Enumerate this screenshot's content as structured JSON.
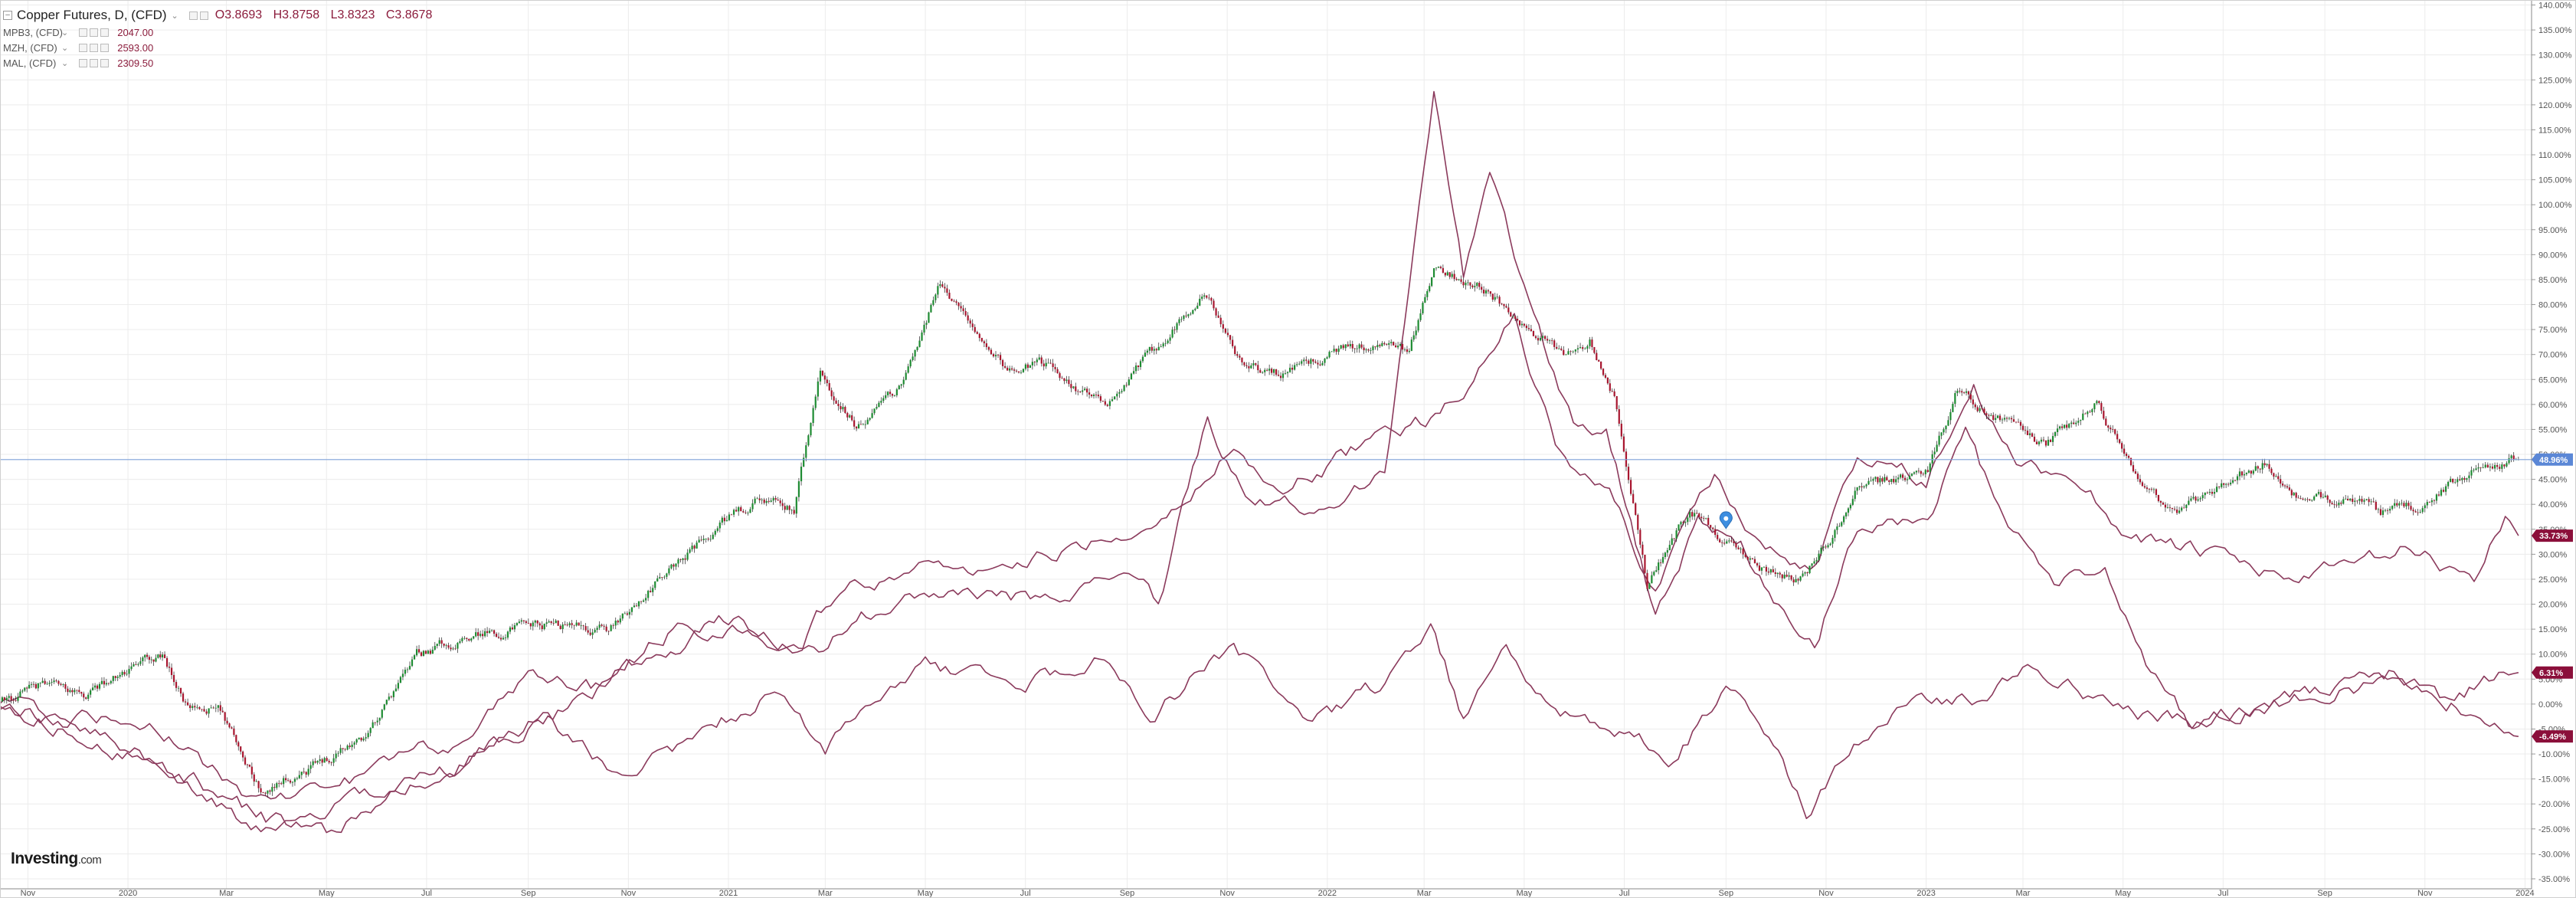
{
  "legend": {
    "main": {
      "symbol": "Copper Futures, D, (CFD)",
      "open": "O3.8693",
      "high": "H3.8758",
      "low": "L3.8323",
      "close": "C3.8678"
    },
    "subs": [
      {
        "symbol": "MPB3, (CFD)",
        "value": "2047.00"
      },
      {
        "symbol": "MZH, (CFD)",
        "value": "2593.00"
      },
      {
        "symbol": "MAL, (CFD)",
        "value": "2309.50"
      }
    ]
  },
  "logo": {
    "brand": "Investing",
    "suffix": ".com"
  },
  "colors": {
    "up": "#1e8b32",
    "down": "#a8162f",
    "compare": "#8b3a5c",
    "hline": "#7ea1d8",
    "grid": "#ececec",
    "badge_main": "#5b87d6",
    "badge_compare": "#8b0f3a"
  },
  "chart_data": {
    "type": "line",
    "y_unit": "%",
    "ylim": [
      -37,
      141
    ],
    "y_ticks": [
      "140.00%",
      "135.00%",
      "130.00%",
      "125.00%",
      "120.00%",
      "115.00%",
      "110.00%",
      "105.00%",
      "100.00%",
      "95.00%",
      "90.00%",
      "85.00%",
      "80.00%",
      "75.00%",
      "70.00%",
      "65.00%",
      "60.00%",
      "55.00%",
      "50.00%",
      "45.00%",
      "40.00%",
      "35.00%",
      "30.00%",
      "25.00%",
      "20.00%",
      "15.00%",
      "10.00%",
      "5.00%",
      "0.00%",
      "-5.00%",
      "-10.00%",
      "-15.00%",
      "-20.00%",
      "-25.00%",
      "-30.00%",
      "-35.00%"
    ],
    "x_ticks": [
      "Nov",
      "2020",
      "Mar",
      "May",
      "Jul",
      "Sep",
      "Nov",
      "2021",
      "Mar",
      "May",
      "Jul",
      "Sep",
      "Nov",
      "2022",
      "Mar",
      "May",
      "Jul",
      "Sep",
      "Nov",
      "2023",
      "Mar",
      "May",
      "Jul",
      "Sep",
      "Nov",
      "2024"
    ],
    "x_range": [
      "2019-10-15",
      "2024-01-05"
    ],
    "grid": true,
    "current_line": 48.96,
    "series": [
      {
        "name": "Copper Futures, D, (CFD)",
        "style": "candlestick",
        "points": [
          [
            "2019-10-15",
            0
          ],
          [
            "2019-11-10",
            4
          ],
          [
            "2019-12-05",
            2
          ],
          [
            "2020-01-10",
            8
          ],
          [
            "2020-01-22",
            10
          ],
          [
            "2020-02-05",
            0
          ],
          [
            "2020-02-25",
            -1
          ],
          [
            "2020-03-22",
            -17
          ],
          [
            "2020-04-20",
            -13
          ],
          [
            "2020-05-25",
            -6
          ],
          [
            "2020-06-25",
            10
          ],
          [
            "2020-07-31",
            14
          ],
          [
            "2020-09-15",
            16
          ],
          [
            "2020-10-20",
            15
          ],
          [
            "2020-11-30",
            28
          ],
          [
            "2020-12-31",
            37
          ],
          [
            "2021-01-20",
            41
          ],
          [
            "2021-02-10",
            39
          ],
          [
            "2021-02-26",
            66
          ],
          [
            "2021-03-20",
            56
          ],
          [
            "2021-04-15",
            63
          ],
          [
            "2021-05-10",
            84
          ],
          [
            "2021-06-20",
            67
          ],
          [
            "2021-07-15",
            68
          ],
          [
            "2021-08-20",
            59
          ],
          [
            "2021-09-05",
            66
          ],
          [
            "2021-10-18",
            83
          ],
          [
            "2021-11-10",
            68
          ],
          [
            "2021-12-05",
            66
          ],
          [
            "2022-01-15",
            72
          ],
          [
            "2022-02-20",
            71
          ],
          [
            "2022-03-07",
            87
          ],
          [
            "2022-04-05",
            84
          ],
          [
            "2022-05-01",
            75
          ],
          [
            "2022-05-25",
            70
          ],
          [
            "2022-06-10",
            73
          ],
          [
            "2022-06-25",
            62
          ],
          [
            "2022-07-15",
            24
          ],
          [
            "2022-08-10",
            39
          ],
          [
            "2022-08-31",
            33
          ],
          [
            "2022-09-20",
            27
          ],
          [
            "2022-10-15",
            25
          ],
          [
            "2022-11-05",
            33
          ],
          [
            "2022-11-20",
            43
          ],
          [
            "2023-01-02",
            47
          ],
          [
            "2023-01-20",
            63
          ],
          [
            "2023-02-15",
            57
          ],
          [
            "2023-03-15",
            52
          ],
          [
            "2023-04-15",
            60
          ],
          [
            "2023-05-10",
            46
          ],
          [
            "2023-05-31",
            38
          ],
          [
            "2023-06-30",
            44
          ],
          [
            "2023-07-25",
            48
          ],
          [
            "2023-08-20",
            40
          ],
          [
            "2023-09-15",
            42
          ],
          [
            "2023-10-05",
            38
          ],
          [
            "2023-11-01",
            40
          ],
          [
            "2023-12-05",
            48
          ],
          [
            "2023-12-28",
            49
          ]
        ]
      },
      {
        "name": "MPB3, (CFD)",
        "style": "line",
        "points": [
          [
            "2019-10-15",
            0
          ],
          [
            "2019-12-01",
            -6
          ],
          [
            "2020-01-25",
            -13
          ],
          [
            "2020-03-22",
            -26
          ],
          [
            "2020-05-15",
            -20
          ],
          [
            "2020-07-15",
            -13
          ],
          [
            "2020-09-10",
            -2
          ],
          [
            "2020-10-25",
            -15
          ],
          [
            "2020-12-10",
            -7
          ],
          [
            "2021-02-01",
            3
          ],
          [
            "2021-03-01",
            -9
          ],
          [
            "2021-05-01",
            8
          ],
          [
            "2021-06-25",
            3
          ],
          [
            "2021-08-15",
            9
          ],
          [
            "2021-09-15",
            -2
          ],
          [
            "2021-11-05",
            12
          ],
          [
            "2021-12-20",
            -5
          ],
          [
            "2022-01-30",
            3
          ],
          [
            "2022-03-05",
            14
          ],
          [
            "2022-03-25",
            -3
          ],
          [
            "2022-04-20",
            12
          ],
          [
            "2022-05-20",
            -1
          ],
          [
            "2022-07-01",
            -5
          ],
          [
            "2022-07-31",
            -12
          ],
          [
            "2022-09-01",
            3
          ],
          [
            "2022-09-30",
            -8
          ],
          [
            "2022-10-20",
            -22
          ],
          [
            "2022-11-15",
            -10
          ],
          [
            "2022-12-20",
            2
          ],
          [
            "2023-02-01",
            1
          ],
          [
            "2023-03-10",
            8
          ],
          [
            "2023-05-01",
            -2
          ],
          [
            "2023-06-15",
            -4
          ],
          [
            "2023-08-01",
            0
          ],
          [
            "2023-09-01",
            2
          ],
          [
            "2023-10-15",
            5
          ],
          [
            "2023-11-20",
            0
          ],
          [
            "2023-12-28",
            -6.49
          ]
        ]
      },
      {
        "name": "MZH, (CFD)",
        "style": "line",
        "points": [
          [
            "2019-10-15",
            0
          ],
          [
            "2019-12-15",
            -6
          ],
          [
            "2020-02-10",
            -15
          ],
          [
            "2020-03-25",
            -23
          ],
          [
            "2020-05-01",
            -26
          ],
          [
            "2020-06-15",
            -18
          ],
          [
            "2020-09-01",
            -5
          ],
          [
            "2020-11-15",
            10
          ],
          [
            "2021-01-01",
            17
          ],
          [
            "2021-02-25",
            10
          ],
          [
            "2021-03-20",
            18
          ],
          [
            "2021-05-15",
            22
          ],
          [
            "2021-07-01",
            21
          ],
          [
            "2021-09-05",
            26
          ],
          [
            "2021-09-20",
            20
          ],
          [
            "2021-10-20",
            58
          ],
          [
            "2021-11-15",
            40
          ],
          [
            "2021-12-30",
            40
          ],
          [
            "2022-02-05",
            47
          ],
          [
            "2022-03-07",
            122
          ],
          [
            "2022-03-25",
            85
          ],
          [
            "2022-04-10",
            107
          ],
          [
            "2022-05-10",
            75
          ],
          [
            "2022-05-31",
            56
          ],
          [
            "2022-06-20",
            55
          ],
          [
            "2022-07-20",
            18
          ],
          [
            "2022-08-15",
            36
          ],
          [
            "2022-09-10",
            32
          ],
          [
            "2022-09-30",
            21
          ],
          [
            "2022-10-25",
            12
          ],
          [
            "2022-11-20",
            35
          ],
          [
            "2023-01-05",
            38
          ],
          [
            "2023-01-25",
            55
          ],
          [
            "2023-02-20",
            35
          ],
          [
            "2023-03-20",
            24
          ],
          [
            "2023-04-20",
            26
          ],
          [
            "2023-05-15",
            9
          ],
          [
            "2023-06-10",
            -3
          ],
          [
            "2023-07-20",
            0
          ],
          [
            "2023-09-01",
            3
          ],
          [
            "2023-10-10",
            6
          ],
          [
            "2023-11-10",
            1
          ],
          [
            "2023-12-28",
            6.31
          ]
        ]
      },
      {
        "name": "MAL, (CFD)",
        "style": "line",
        "points": [
          [
            "2019-10-15",
            0
          ],
          [
            "2019-12-01",
            -3
          ],
          [
            "2020-01-20",
            -5
          ],
          [
            "2020-03-22",
            -20
          ],
          [
            "2020-05-15",
            -15
          ],
          [
            "2020-07-20",
            -7
          ],
          [
            "2020-09-01",
            5
          ],
          [
            "2020-10-15",
            3
          ],
          [
            "2020-12-01",
            16
          ],
          [
            "2021-02-15",
            12
          ],
          [
            "2021-03-10",
            24
          ],
          [
            "2021-05-15",
            28
          ],
          [
            "2021-06-20",
            26
          ],
          [
            "2021-08-10",
            33
          ],
          [
            "2021-09-25",
            38
          ],
          [
            "2021-11-05",
            51
          ],
          [
            "2021-12-05",
            43
          ],
          [
            "2022-01-30",
            53
          ],
          [
            "2022-03-05",
            57
          ],
          [
            "2022-03-25",
            62
          ],
          [
            "2022-04-25",
            78
          ],
          [
            "2022-05-20",
            52
          ],
          [
            "2022-06-25",
            40
          ],
          [
            "2022-07-20",
            23
          ],
          [
            "2022-08-25",
            46
          ],
          [
            "2022-09-25",
            30
          ],
          [
            "2022-10-25",
            27
          ],
          [
            "2022-11-20",
            49
          ],
          [
            "2023-01-01",
            45
          ],
          [
            "2023-01-30",
            63
          ],
          [
            "2023-02-25",
            48
          ],
          [
            "2023-04-05",
            45
          ],
          [
            "2023-04-30",
            35
          ],
          [
            "2023-06-20",
            30
          ],
          [
            "2023-08-10",
            25
          ],
          [
            "2023-09-25",
            28
          ],
          [
            "2023-10-20",
            31
          ],
          [
            "2023-12-01",
            25
          ],
          [
            "2023-12-20",
            38
          ],
          [
            "2023-12-28",
            33.73
          ]
        ]
      }
    ],
    "badges": [
      {
        "series": "Copper Futures, D, (CFD)",
        "label": "48.96%",
        "value": 48.96,
        "kind": "main"
      },
      {
        "series": "MAL, (CFD)",
        "label": "33.73%",
        "value": 33.73,
        "kind": "compare"
      },
      {
        "series": "MZH, (CFD)",
        "label": "6.31%",
        "value": 6.31,
        "kind": "compare"
      },
      {
        "series": "MPB3, (CFD)",
        "label": "-6.49%",
        "value": -6.49,
        "kind": "compare"
      }
    ]
  }
}
